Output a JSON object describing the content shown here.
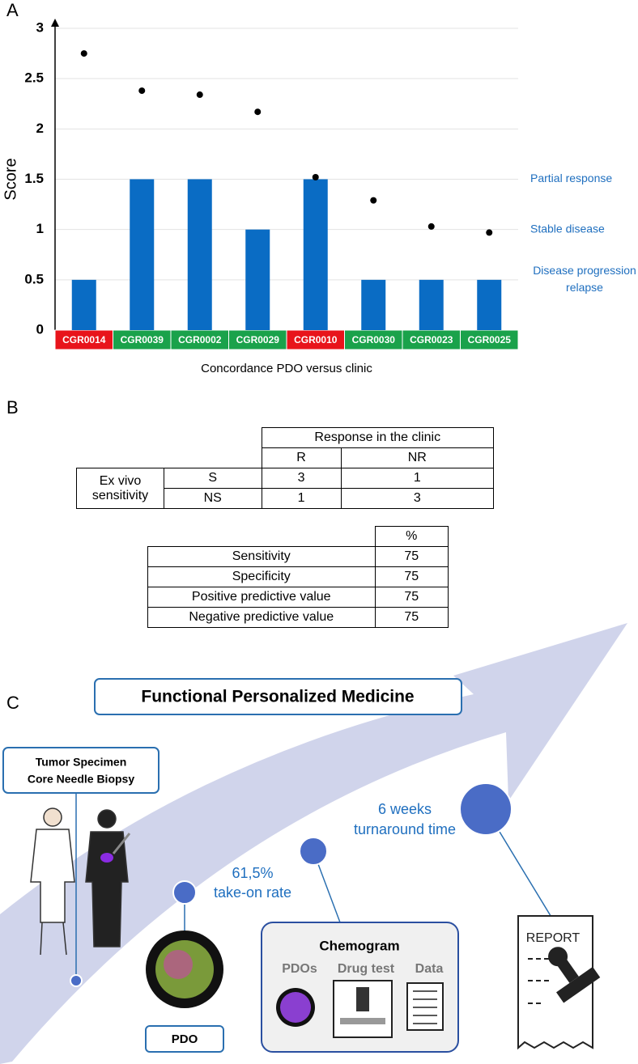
{
  "panel_labels": [
    "A",
    "B",
    "C"
  ],
  "chart_data": {
    "type": "bar",
    "ylabel": "Score",
    "xlabel": "Concordance PDO versus clinic",
    "categories": [
      "CGR0014",
      "CGR0039",
      "CGR0002",
      "CGR0029",
      "CGR0010",
      "CGR0030",
      "CGR0023",
      "CGR0025"
    ],
    "category_colors": [
      "#e8141b",
      "#1aa24b",
      "#1aa24b",
      "#1aa24b",
      "#e8141b",
      "#1aa24b",
      "#1aa24b",
      "#1aa24b"
    ],
    "series": [
      {
        "type": "bar",
        "color": "#0a6cc4",
        "values": [
          0.5,
          1.5,
          1.5,
          1,
          1.5,
          0.5,
          0.5,
          0.5
        ]
      },
      {
        "type": "scatter",
        "color": "#000000",
        "values": [
          2.75,
          2.38,
          2.34,
          2.17,
          1.52,
          1.29,
          1.03,
          0.97
        ]
      }
    ],
    "ylim": [
      0,
      3
    ],
    "yticks": [
      0,
      0.5,
      1,
      1.5,
      2,
      2.5,
      3
    ],
    "grid": true,
    "annotations": [
      {
        "lines": [
          "Partial response"
        ],
        "y": 1.5
      },
      {
        "lines": [
          "Stable disease"
        ],
        "y": 1
      },
      {
        "lines": [
          "Disease progression",
          "relapse"
        ],
        "y": 0.5
      }
    ],
    "annotation_color": "#1f6fbf"
  },
  "table_response": {
    "header": "Response in the clinic",
    "columns": [
      "R",
      "NR"
    ],
    "row_group": "Ex vivo sensitivity",
    "rows": [
      {
        "label": "S",
        "values": [
          3,
          1
        ]
      },
      {
        "label": "NS",
        "values": [
          1,
          3
        ]
      }
    ]
  },
  "table_metrics": {
    "header": "%",
    "rows": [
      {
        "label": "Sensitivity",
        "value": 75
      },
      {
        "label": "Specificity",
        "value": 75
      },
      {
        "label": "Positive predictive value",
        "value": 75
      },
      {
        "label": "Negative predictive value",
        "value": 75
      }
    ]
  },
  "diagram": {
    "title": "Functional Personalized Medicine",
    "specimen": [
      "Tumor Specimen",
      "Core Needle Biopsy"
    ],
    "take_on": [
      "61,5%",
      "take-on rate"
    ],
    "turnaround": [
      "6 weeks",
      "turnaround time"
    ],
    "chemogram": {
      "title": "Chemogram",
      "items": [
        "PDOs",
        "Drug test",
        "Data"
      ]
    },
    "pdo": "PDO",
    "report": "REPORT"
  }
}
